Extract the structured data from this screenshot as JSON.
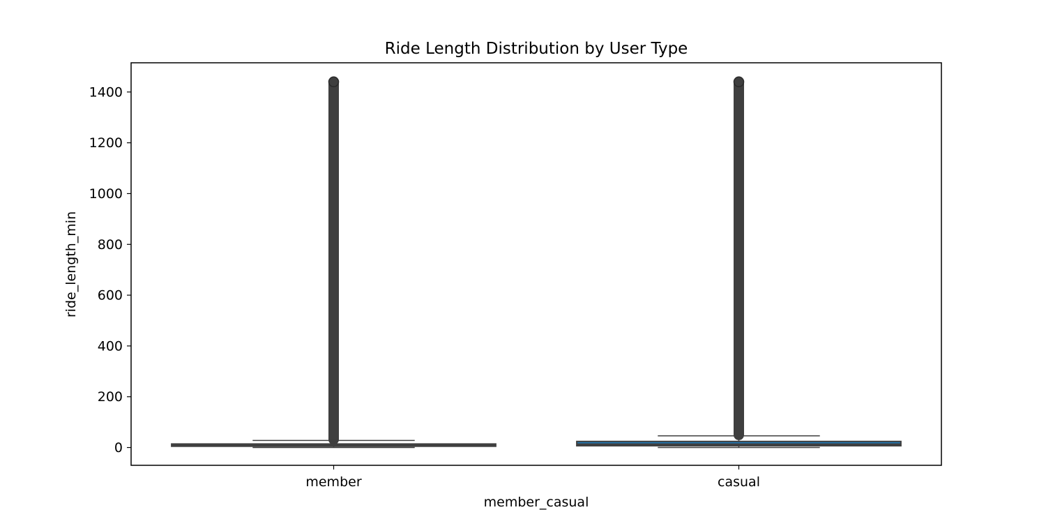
{
  "chart_data": {
    "type": "box",
    "title": "Ride Length Distribution by User Type",
    "xlabel": "member_casual",
    "ylabel": "ride_length_min",
    "categories": [
      "member",
      "casual"
    ],
    "ylim": [
      -70,
      1515
    ],
    "yticks": [
      0,
      200,
      400,
      600,
      800,
      1000,
      1200,
      1400
    ],
    "grid": false,
    "legend": "none",
    "colors": {
      "box_fill": "#1f77b4",
      "line": "#3f3f3f",
      "axis": "#000000"
    },
    "boxes": [
      {
        "category": "member",
        "whisker_low": 0,
        "q1": 5,
        "median": 9,
        "q3": 14,
        "whisker_high": 28,
        "outlier_min": 29,
        "outlier_max": 1440
      },
      {
        "category": "casual",
        "whisker_low": 0,
        "q1": 7,
        "median": 13,
        "q3": 24,
        "whisker_high": 46,
        "outlier_min": 47,
        "outlier_max": 1440
      }
    ]
  }
}
